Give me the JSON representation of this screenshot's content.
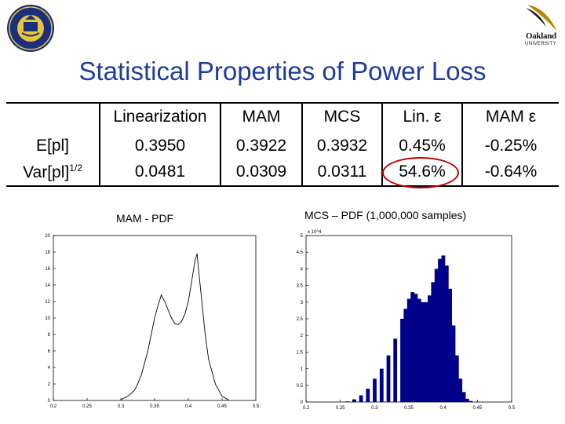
{
  "title": "Statistical Properties of Power Loss",
  "logos": {
    "left_seal": "university-seal",
    "right_logo_line1": "Oakland",
    "right_logo_line2": "UNIVERSITY"
  },
  "table": {
    "headers": [
      "",
      "Linearization",
      "MAM",
      "MCS",
      "Lin. ε",
      "MAM ε"
    ],
    "rows": [
      {
        "label": "E[pl]",
        "values": [
          "0.3950",
          "0.3922",
          "0.3932",
          "0.45%",
          "-0.25%"
        ]
      },
      {
        "label_base": "Var[pl]",
        "label_sup": "1/2",
        "values": [
          "0.0481",
          "0.0309",
          "0.0311",
          "54.6%",
          "-0.64%"
        ]
      }
    ],
    "highlight_color": "#c00000"
  },
  "plots": {
    "mam": {
      "title": "MAM - PDF",
      "chart_data": {
        "type": "line",
        "title": "MAM - PDF",
        "xlim": [
          0.2,
          0.5
        ],
        "ylim": [
          0,
          20
        ],
        "xticks": [
          "0.2",
          "0.25",
          "0.3",
          "0.35",
          "0.4",
          "0.45",
          "0.5"
        ],
        "yticks": [
          "0",
          "2",
          "4",
          "6",
          "8",
          "10",
          "12",
          "14",
          "16",
          "18",
          "20"
        ],
        "x": [
          0.3,
          0.31,
          0.32,
          0.325,
          0.33,
          0.335,
          0.34,
          0.345,
          0.35,
          0.355,
          0.36,
          0.365,
          0.37,
          0.375,
          0.38,
          0.385,
          0.39,
          0.395,
          0.4,
          0.405,
          0.41,
          0.413,
          0.415,
          0.42,
          0.425,
          0.43,
          0.44,
          0.45,
          0.46
        ],
        "y": [
          0.1,
          0.5,
          1.2,
          2.0,
          3.0,
          4.5,
          6.0,
          8.0,
          10.0,
          11.5,
          12.8,
          12.0,
          11.0,
          10.0,
          9.3,
          9.2,
          9.6,
          10.5,
          12.0,
          14.5,
          17.0,
          17.8,
          16.0,
          12.0,
          8.0,
          5.0,
          2.0,
          0.5,
          0.05
        ],
        "color": "#000000"
      }
    },
    "mcs": {
      "title": "MCS – PDF (1,000,000 samples)",
      "chart_data": {
        "type": "bar",
        "title": "MCS – PDF (1,000,000 samples)",
        "xlim": [
          0.2,
          0.5
        ],
        "ylim": [
          0,
          5
        ],
        "y_multiplier": "x 10^4",
        "xticks": [
          "0.2",
          "0.25",
          "0.3",
          "0.35",
          "0.4",
          "0.45",
          "0.5"
        ],
        "yticks": [
          "0",
          "0.5",
          "1",
          "1.5",
          "2",
          "2.5",
          "3",
          "3.5",
          "4",
          "4.5",
          "5"
        ],
        "x": [
          0.26,
          0.27,
          0.28,
          0.29,
          0.3,
          0.31,
          0.32,
          0.33,
          0.34,
          0.345,
          0.35,
          0.355,
          0.36,
          0.365,
          0.37,
          0.375,
          0.38,
          0.385,
          0.39,
          0.395,
          0.4,
          0.405,
          0.41,
          0.415,
          0.42,
          0.425,
          0.43,
          0.435,
          0.44
        ],
        "values": [
          0.02,
          0.08,
          0.2,
          0.4,
          0.7,
          1.0,
          1.4,
          1.9,
          2.5,
          2.8,
          3.1,
          3.3,
          3.25,
          3.1,
          3.0,
          3.0,
          3.2,
          3.6,
          4.0,
          4.3,
          4.4,
          4.1,
          3.4,
          2.3,
          1.4,
          0.7,
          0.3,
          0.1,
          0.03
        ],
        "color": "#00008b"
      }
    }
  }
}
